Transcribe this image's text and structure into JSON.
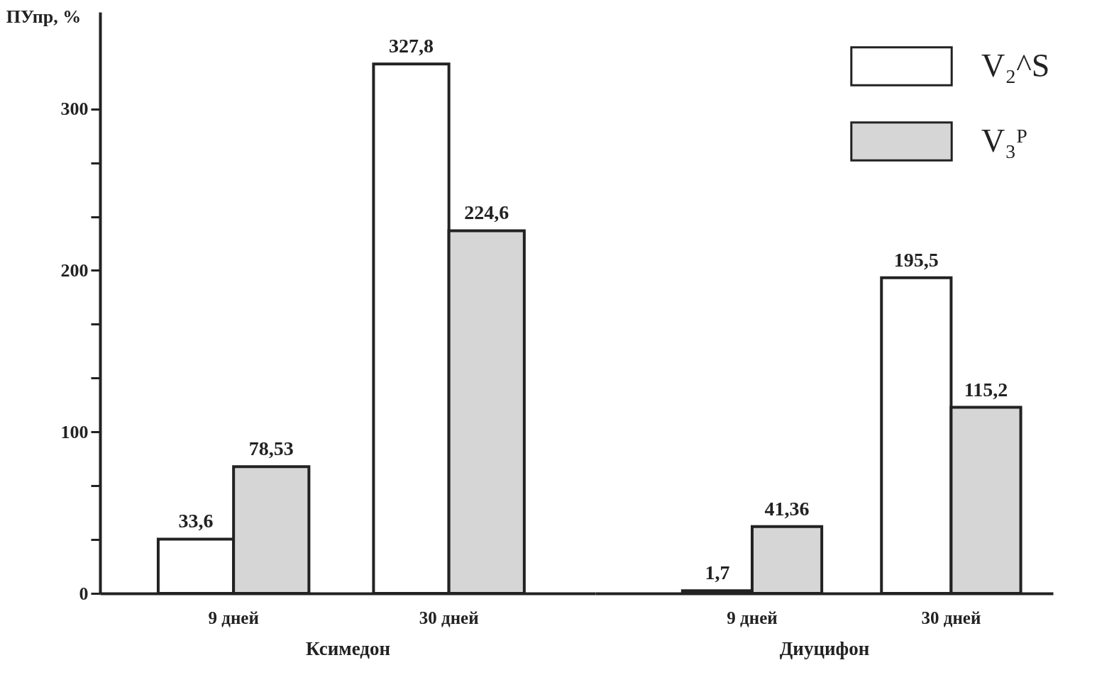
{
  "chart_data": [
    {
      "type": "bar",
      "ylabel": "ПУпр, %",
      "xlabel": "Ксимедон",
      "categories": [
        "9 дней",
        "30 дней"
      ],
      "series": [
        {
          "color": "#ffffff",
          "values": [
            33.6,
            327.8
          ],
          "value_labels": [
            "33,6",
            "327,8"
          ]
        },
        {
          "color": "#d6d6d6",
          "values": [
            78.53,
            224.6
          ],
          "value_labels": [
            "78,53",
            "224,6"
          ]
        }
      ],
      "ylim": [
        0,
        360
      ],
      "yticks": [
        0,
        {
          "value": 33.3,
          "label": null
        },
        {
          "value": 66.7,
          "label": null
        },
        100,
        {
          "value": 133.3,
          "label": null
        },
        {
          "value": 166.7,
          "label": null
        },
        200,
        {
          "value": 233.3,
          "label": null
        },
        {
          "value": 266.7,
          "label": null
        },
        300
      ]
    },
    {
      "type": "bar",
      "xlabel": "Диуцифон",
      "categories": [
        "9 дней",
        "30 дней"
      ],
      "series": [
        {
          "name": "V₂^S",
          "color": "#ffffff",
          "values": [
            1.7,
            195.5
          ],
          "value_labels": [
            "1,7",
            "195,5"
          ]
        },
        {
          "name": "V₃ᴾ",
          "color": "#d6d6d6",
          "values": [
            41.36,
            115.2
          ],
          "value_labels": [
            "41,36",
            "115,2"
          ]
        }
      ],
      "tick_labels": "x",
      "legend": "top right"
    }
  ]
}
